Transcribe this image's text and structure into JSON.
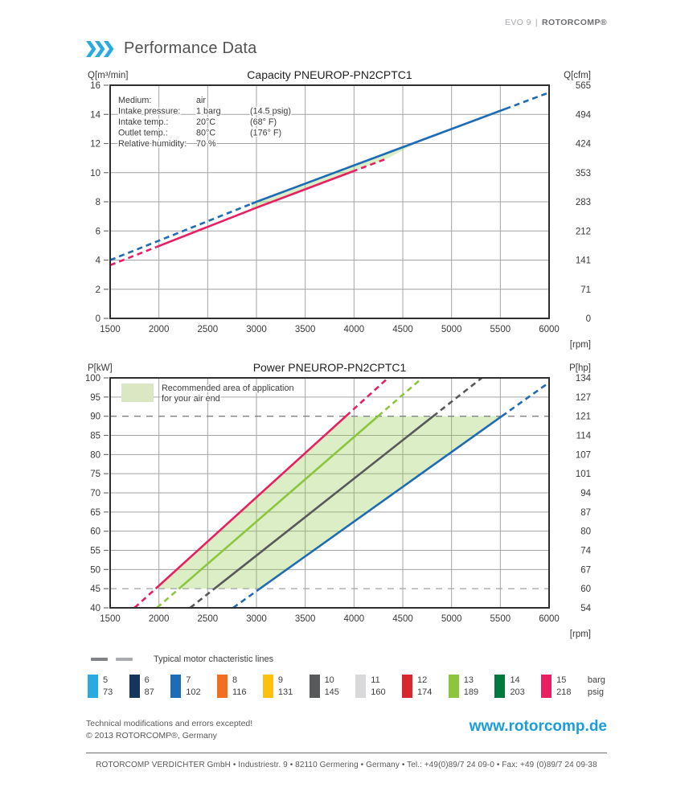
{
  "header": {
    "model": "EVO 9",
    "separator": "|",
    "brand": "ROTORCOMP®"
  },
  "page_title": "Performance Data",
  "chart_data": [
    {
      "id": "capacity",
      "type": "line",
      "title": "Capacity PNEUROP-PN2CPTC1",
      "x": {
        "label": "[rpm]",
        "range": [
          1500,
          6000
        ],
        "ticks": [
          1500,
          2000,
          2500,
          3000,
          3500,
          4000,
          4500,
          5000,
          5500,
          6000
        ]
      },
      "y_left": {
        "label": "Q[m³/min]",
        "range": [
          0,
          16
        ],
        "ticks": [
          0,
          2,
          4,
          6,
          8,
          10,
          12,
          14,
          16
        ]
      },
      "y_right": {
        "label": "Q[cfm]",
        "ticks": [
          0,
          71,
          141,
          212,
          283,
          353,
          424,
          494,
          565
        ]
      },
      "info_box": {
        "rows": [
          [
            "Medium:",
            "air",
            ""
          ],
          [
            "Intake pressure:",
            "1 barg",
            "(14.5 psig)"
          ],
          [
            "Intake temp.:",
            "20°C",
            "(68° F)"
          ],
          [
            "Outlet temp.:",
            "80°C",
            "(176° F)"
          ],
          [
            "Relative humidity:",
            "70 %",
            ""
          ]
        ]
      },
      "series": [
        {
          "name": "capacity-7-barg",
          "color": "#1e6cb5",
          "points": [
            [
              1500,
              4.0
            ],
            [
              3000,
              8.0
            ],
            [
              6000,
              15.5
            ]
          ],
          "solid_from": 2950,
          "solid_to": 5550
        },
        {
          "name": "capacity-15-barg",
          "color": "#e81f63",
          "points": [
            [
              1500,
              3.65
            ],
            [
              3000,
              7.6
            ],
            [
              4350,
              11.0
            ]
          ],
          "solid_from": 1975,
          "solid_to": 3980
        }
      ],
      "shaded_polygon": [
        [
          2950,
          7.87
        ],
        [
          3000,
          8.0
        ],
        [
          4700,
          12.25
        ],
        [
          4350,
          11.0
        ],
        [
          2950,
          7.47
        ]
      ],
      "shade_color": "rgba(140,198,62,0.30)"
    },
    {
      "id": "power",
      "type": "line",
      "title": "Power PNEUROP-PN2CPTC1",
      "x": {
        "label": "[rpm]",
        "range": [
          1500,
          6000
        ],
        "ticks": [
          1500,
          2000,
          2500,
          3000,
          3500,
          4000,
          4500,
          5000,
          5500,
          6000
        ]
      },
      "y_left": {
        "label": "P[kW]",
        "range": [
          40,
          100
        ],
        "ticks": [
          40,
          45,
          50,
          55,
          60,
          65,
          70,
          75,
          80,
          85,
          90,
          95,
          100
        ]
      },
      "y_right": {
        "label": "P[hp]",
        "ticks": [
          54,
          60,
          67,
          74,
          80,
          87,
          94,
          101,
          107,
          114,
          121,
          127,
          134
        ]
      },
      "app_legend": [
        "Recommended area of application",
        "for your air end"
      ],
      "series": [
        {
          "name": "power-15-barg",
          "color": "#e81f63",
          "points": [
            [
              1750,
              40
            ],
            [
              4350,
              100
            ]
          ],
          "solid_from": 1967,
          "solid_to": 3917
        },
        {
          "name": "power-13-barg",
          "color": "#8cc63e",
          "points": [
            [
              1980,
              40
            ],
            [
              4700,
              100
            ]
          ],
          "solid_from": 2207,
          "solid_to": 4247
        },
        {
          "name": "power-10-barg",
          "color": "#58595b",
          "points": [
            [
              2320,
              40
            ],
            [
              5310,
              100
            ]
          ],
          "solid_from": 2569,
          "solid_to": 4810
        },
        {
          "name": "power-7-barg",
          "color": "#1e6cb5",
          "points": [
            [
              2760,
              40
            ],
            [
              6000,
              98.8
            ]
          ],
          "solid_from": 3036,
          "solid_to": 5516
        }
      ],
      "motor_lines": [
        {
          "value": 90,
          "color": "#808285"
        },
        {
          "value": 45,
          "color": "#a9abae"
        }
      ],
      "shaded_polygon": [
        [
          1967,
          45
        ],
        [
          3917,
          90
        ],
        [
          5516,
          90
        ],
        [
          3036,
          45
        ]
      ],
      "shade_color": "rgba(140,198,62,0.30)"
    }
  ],
  "motor_legend": {
    "label": "Typical motor chacteristic lines",
    "dash_colors": [
      "#808285",
      "#a9abae"
    ]
  },
  "pressure_legend": {
    "items": [
      {
        "barg": "5",
        "psig": "73",
        "color": "#29abe2"
      },
      {
        "barg": "6",
        "psig": "87",
        "color": "#16355c"
      },
      {
        "barg": "7",
        "psig": "102",
        "color": "#1e6cb5"
      },
      {
        "barg": "8",
        "psig": "116",
        "color": "#f26f21"
      },
      {
        "barg": "9",
        "psig": "131",
        "color": "#fdc010"
      },
      {
        "barg": "10",
        "psig": "145",
        "color": "#58595b"
      },
      {
        "barg": "11",
        "psig": "160",
        "color": "#d8d9da"
      },
      {
        "barg": "12",
        "psig": "174",
        "color": "#d7282f"
      },
      {
        "barg": "13",
        "psig": "189",
        "color": "#8cc63e"
      },
      {
        "barg": "14",
        "psig": "203",
        "color": "#00793d"
      },
      {
        "barg": "15",
        "psig": "218",
        "color": "#e81f63"
      }
    ],
    "units": {
      "top": "barg",
      "bottom": "psig"
    }
  },
  "footer": {
    "note_line1": "Technical modifications and errors excepted!",
    "note_line2": "© 2013 ROTORCOMP®, Germany",
    "website": "www.rotorcomp.de",
    "address": "ROTORCOMP VERDICHTER GmbH • Industriestr. 9 • 82110 Germering • Germany • Tel.: +49(0)89/7 24 09-0 • Fax: +49 (0)89/7 24 09-38"
  },
  "accent_colors": {
    "chevron_blue": "#29abe2",
    "website_blue": "#1b9dd9"
  }
}
